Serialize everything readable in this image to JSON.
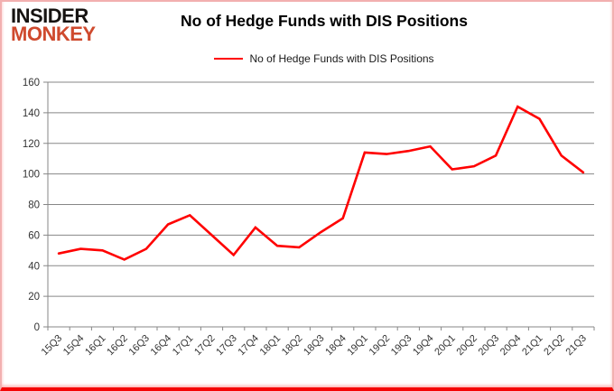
{
  "logo": {
    "line1": "INSIDER",
    "line2": "MONKEY"
  },
  "header": {
    "title": "No of Hedge Funds with DIS Positions"
  },
  "legend": {
    "label": "No of Hedge Funds with DIS Positions"
  },
  "colors": {
    "series": "#ff0000",
    "grid": "#878787",
    "axis": "#878787",
    "axis_text": "#333333",
    "logo_black": "#161311",
    "logo_red": "#cf4a2e",
    "frame_pink": "#f2b0b0",
    "frame_red": "#f40505"
  },
  "chart_data": {
    "type": "line",
    "title": "No of Hedge Funds with DIS Positions",
    "categories": [
      "15Q3",
      "15Q4",
      "16Q1",
      "16Q2",
      "16Q3",
      "16Q4",
      "17Q1",
      "17Q2",
      "17Q3",
      "17Q4",
      "18Q1",
      "18Q2",
      "18Q3",
      "18Q4",
      "19Q1",
      "19Q2",
      "19Q3",
      "19Q4",
      "20Q1",
      "20Q2",
      "20Q3",
      "20Q4",
      "21Q1",
      "21Q2",
      "21Q3"
    ],
    "series": [
      {
        "name": "No of Hedge Funds with DIS Positions",
        "values": [
          48,
          51,
          50,
          44,
          51,
          67,
          73,
          60,
          47,
          65,
          53,
          52,
          62,
          71,
          114,
          113,
          115,
          118,
          103,
          105,
          112,
          144,
          136,
          112,
          101
        ]
      }
    ],
    "xlabel": "",
    "ylabel": "",
    "ylim": [
      0,
      160
    ],
    "ytick_step": 20,
    "grid": true,
    "legend_position": "top-center",
    "x_tick_label_rotation_deg": 45
  }
}
